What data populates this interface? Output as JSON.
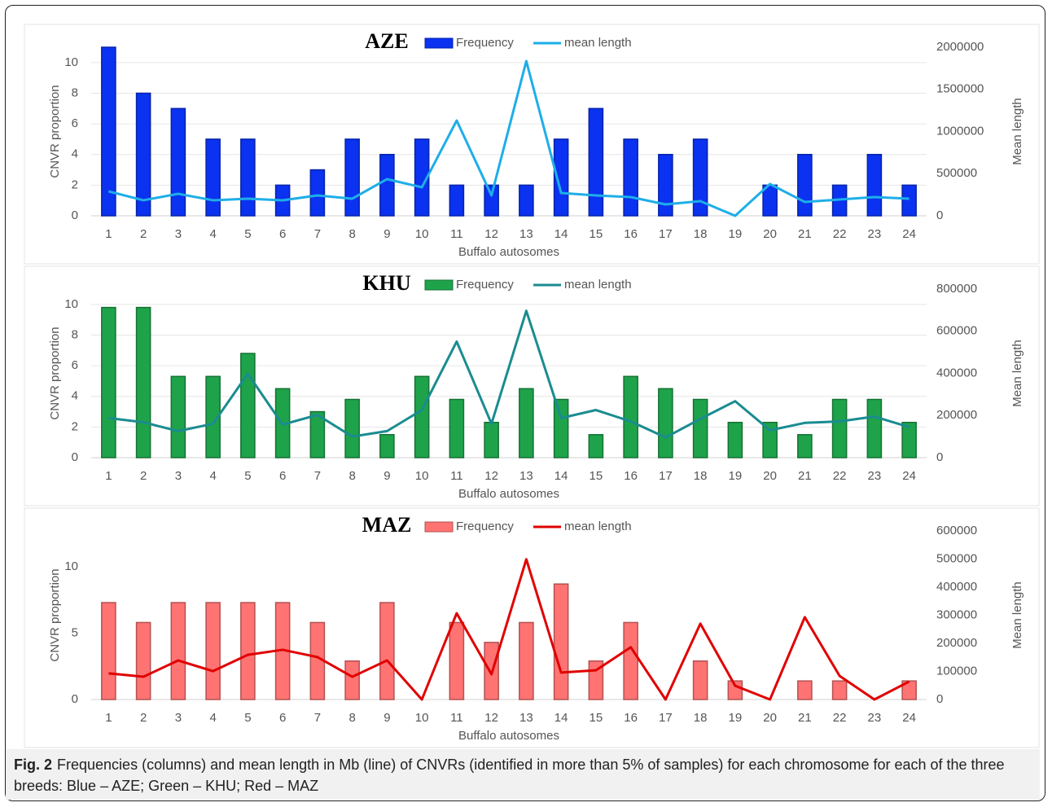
{
  "chart_data": [
    {
      "type": "bar-line",
      "title": "AZE",
      "x_label": "Buffalo autosomes",
      "y_label": "CNVR proportion",
      "y2_label": "Mean length",
      "categories": [
        "1",
        "2",
        "3",
        "4",
        "5",
        "6",
        "7",
        "8",
        "9",
        "10",
        "11",
        "12",
        "13",
        "14",
        "15",
        "16",
        "17",
        "18",
        "19",
        "20",
        "21",
        "22",
        "23",
        "24"
      ],
      "series": [
        {
          "name": "Frequency",
          "type": "bar",
          "color": "#0a32f0",
          "values": [
            11,
            8,
            7,
            5,
            5,
            2,
            3,
            5,
            4,
            5,
            2,
            2,
            2,
            5,
            7,
            5,
            4,
            5,
            0,
            2,
            4,
            2,
            4,
            2
          ]
        },
        {
          "name": "mean length",
          "type": "line",
          "axis": "y2",
          "color": "#1eaee8",
          "values": [
            290000,
            184000,
            261000,
            184000,
            203000,
            184000,
            242000,
            203000,
            435000,
            338000,
            1130000,
            242000,
            1836000,
            270000,
            242000,
            222000,
            135000,
            174000,
            0,
            377000,
            164000,
            193000,
            222000,
            203000
          ]
        }
      ],
      "ylim": [
        0,
        11
      ],
      "yticks": [
        0,
        2,
        4,
        6,
        8,
        10
      ],
      "y2lim": [
        0,
        2000000
      ],
      "y2ticks": [
        0,
        500000,
        1000000,
        1500000,
        2000000
      ],
      "grid": true
    },
    {
      "type": "bar-line",
      "title": "KHU",
      "x_label": "Buffalo autosomes",
      "y_label": "CNVR proportion",
      "y2_label": "Mean length",
      "categories": [
        "1",
        "2",
        "3",
        "4",
        "5",
        "6",
        "7",
        "8",
        "9",
        "10",
        "11",
        "12",
        "13",
        "14",
        "15",
        "16",
        "17",
        "18",
        "19",
        "20",
        "21",
        "22",
        "23",
        "24"
      ],
      "series": [
        {
          "name": "Frequency",
          "type": "bar",
          "color": "#1ea34a",
          "values": [
            9.8,
            9.8,
            5.3,
            5.3,
            6.8,
            4.5,
            3.0,
            3.8,
            1.5,
            5.3,
            3.8,
            2.3,
            4.5,
            3.8,
            1.5,
            5.3,
            4.5,
            3.8,
            2.3,
            2.3,
            1.5,
            3.8,
            3.8,
            2.3
          ]
        },
        {
          "name": "mean length",
          "type": "line",
          "axis": "y2",
          "color": "#1a8c90",
          "values": [
            188000,
            168000,
            126000,
            161000,
            398000,
            157000,
            203000,
            100000,
            126000,
            226000,
            551000,
            161000,
            697000,
            188000,
            226000,
            172000,
            96000,
            184000,
            268000,
            130000,
            165000,
            172000,
            195000,
            145000
          ]
        }
      ],
      "ylim": [
        0,
        11
      ],
      "yticks": [
        0,
        2,
        4,
        6,
        8,
        10
      ],
      "y2lim": [
        0,
        800000
      ],
      "y2ticks": [
        0,
        200000,
        400000,
        600000,
        800000
      ],
      "grid": true
    },
    {
      "type": "bar-line",
      "title": "MAZ",
      "x_label": "Buffalo autosomes",
      "y_label": "CNVR proportion",
      "y2_label": "Mean length",
      "categories": [
        "1",
        "2",
        "3",
        "4",
        "5",
        "6",
        "7",
        "8",
        "9",
        "10",
        "11",
        "12",
        "13",
        "14",
        "15",
        "16",
        "17",
        "18",
        "19",
        "20",
        "21",
        "22",
        "23",
        "24"
      ],
      "series": [
        {
          "name": "Frequency",
          "type": "bar",
          "color": "#ff7373",
          "values": [
            7.3,
            5.8,
            7.3,
            7.3,
            7.3,
            7.3,
            5.8,
            2.9,
            7.3,
            0,
            5.8,
            4.3,
            5.8,
            8.7,
            2.9,
            5.8,
            0,
            2.9,
            1.4,
            0,
            1.4,
            1.4,
            0,
            1.4
          ]
        },
        {
          "name": "mean length",
          "type": "line",
          "axis": "y2",
          "color": "#e00000",
          "values": [
            93000,
            81000,
            139000,
            101000,
            159000,
            177000,
            151000,
            81000,
            139000,
            0,
            307000,
            90000,
            499000,
            96000,
            104000,
            186000,
            0,
            270000,
            49000,
            0,
            293000,
            84000,
            0,
            64000
          ]
        }
      ],
      "ylim": [
        0,
        12.7
      ],
      "yticks": [
        0,
        5,
        10
      ],
      "y2lim": [
        0,
        600000
      ],
      "y2ticks": [
        0,
        100000,
        200000,
        300000,
        400000,
        500000,
        600000
      ],
      "grid": false
    }
  ],
  "caption": {
    "label": "Fig. 2",
    "text": "Frequencies (columns) and mean length in Mb (line) of CNVRs (identified in more than 5% of samples) for each chromosome for each of the three breeds: Blue – AZE; Green – KHU; Red – MAZ"
  }
}
